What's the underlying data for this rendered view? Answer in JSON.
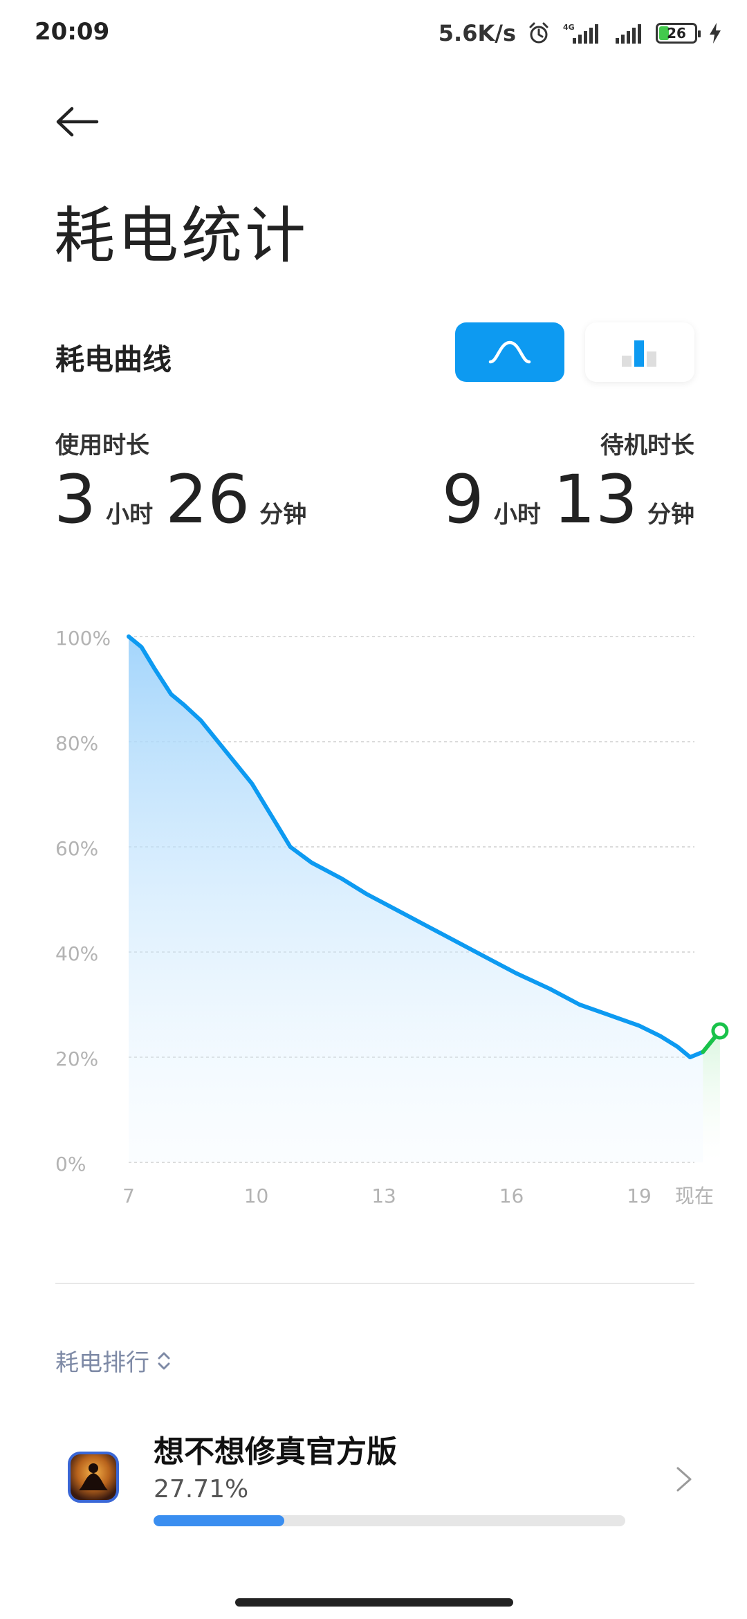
{
  "status_bar": {
    "time": "20:09",
    "net_speed": "5.6K/s",
    "network_type": "4G",
    "battery_level": "26",
    "battery_fraction": 0.26,
    "icons": [
      "alarm-icon",
      "signal-icon",
      "signal-icon",
      "battery-icon",
      "charging-icon"
    ]
  },
  "header": {
    "back_icon": "back-arrow-icon",
    "title": "耗电统计"
  },
  "section": {
    "title": "耗电曲线",
    "toggle_curve_icon": "curve-icon",
    "toggle_bar_icon": "bar-chart-icon",
    "active_toggle": "curve",
    "accent": "#0d9af1"
  },
  "usage": {
    "label": "使用时长",
    "hours": "3",
    "hours_unit": "小时",
    "minutes": "26",
    "minutes_unit": "分钟"
  },
  "standby": {
    "label": "待机时长",
    "hours": "9",
    "hours_unit": "小时",
    "minutes": "13",
    "minutes_unit": "分钟"
  },
  "chart_data": {
    "type": "area",
    "title": "",
    "xlabel": "",
    "ylabel": "",
    "ylim": [
      0,
      100
    ],
    "xlim": [
      7,
      20.3
    ],
    "yticks": [
      "0%",
      "20%",
      "40%",
      "60%",
      "80%",
      "100%"
    ],
    "ytick_values": [
      0,
      20,
      40,
      60,
      80,
      100
    ],
    "xticks": [
      "7",
      "10",
      "13",
      "16",
      "19",
      "现在"
    ],
    "xtick_values": [
      7,
      10,
      13,
      16,
      19,
      20.3
    ],
    "grid": true,
    "series": [
      {
        "color": "#0d9af1",
        "x": [
          7,
          7.3,
          7.6,
          8.0,
          8.3,
          8.7,
          9.1,
          9.5,
          9.9,
          10.2,
          10.5,
          10.8,
          11.3,
          12.0,
          12.6,
          13.3,
          14.0,
          14.7,
          15.4,
          16.1,
          16.9,
          17.6,
          18.3,
          19.0,
          19.5,
          19.9,
          20.2,
          20.5
        ],
        "y": [
          100,
          98,
          94,
          89,
          87,
          84,
          80,
          76,
          72,
          68,
          64,
          60,
          57,
          54,
          51,
          48,
          45,
          42,
          39,
          36,
          33,
          30,
          28,
          26,
          24,
          22,
          20,
          21
        ]
      },
      {
        "color": "#19c24a",
        "x": [
          20.5,
          20.9
        ],
        "y": [
          21,
          25
        ]
      }
    ],
    "end_marker_color": "#19c24a"
  },
  "ranking": {
    "header": "耗电排行",
    "sort_icon": "sort-updown-icon",
    "apps": [
      {
        "name": "想不想修真官方版",
        "percent_text": "27.71%",
        "percent": 27.71,
        "icon": "app-icon-meditation",
        "chevron": "chevron-right-icon"
      }
    ]
  }
}
